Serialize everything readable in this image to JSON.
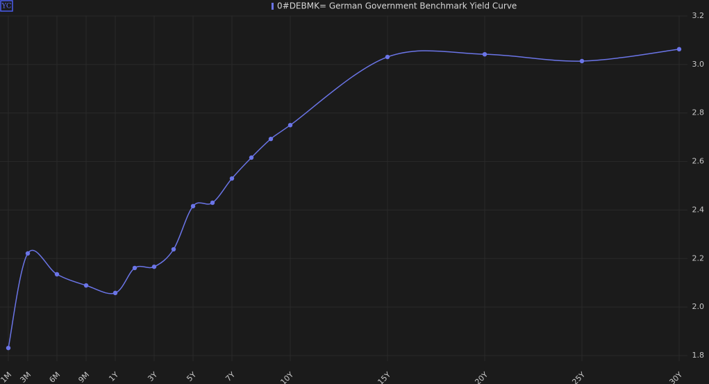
{
  "badge": "YC",
  "chart_data": {
    "type": "line",
    "categories": [
      "1M",
      "3M",
      "6M",
      "9M",
      "1Y",
      null,
      "3Y",
      null,
      "5Y",
      null,
      "7Y",
      null,
      null,
      "10Y",
      "15Y",
      "20Y",
      "25Y",
      "30Y"
    ],
    "series": [
      {
        "name": "0#DEBMK= German Government Benchmark Yield Curve",
        "color": "#6b75e8",
        "values": [
          1.831,
          2.221,
          2.135,
          2.089,
          2.058,
          2.161,
          2.166,
          2.238,
          2.416,
          2.43,
          2.53,
          2.616,
          2.693,
          2.75,
          3.031,
          3.042,
          3.014,
          3.063
        ]
      }
    ],
    "ylim": [
      1.8,
      3.2
    ],
    "yticks": [
      1.8,
      {
        "value": 2,
        "label": "2.0"
      },
      2.2,
      2.4,
      2.6,
      2.8,
      {
        "value": 3,
        "label": "3.0"
      },
      3.2
    ],
    "grid": true
  }
}
